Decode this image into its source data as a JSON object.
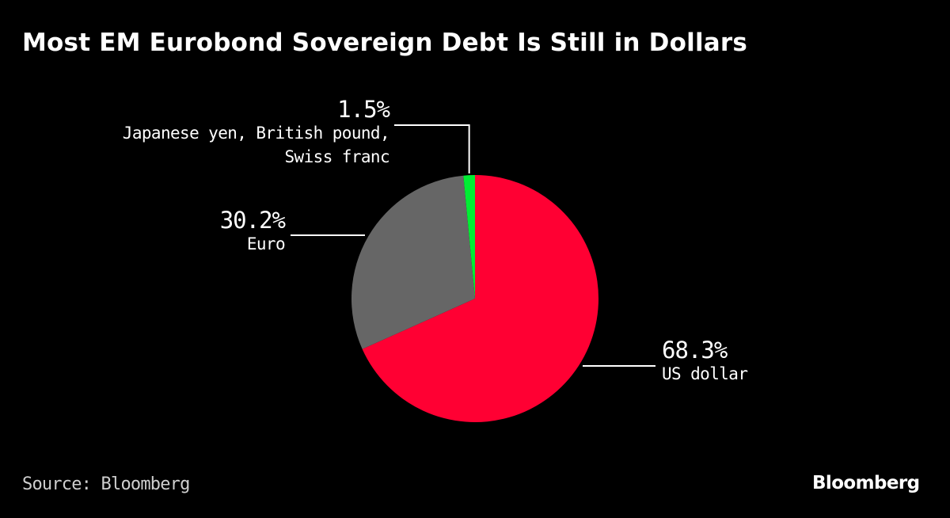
{
  "title": "Most EM Eurobond Sovereign Debt Is Still in Dollars",
  "source": "Source: Bloomberg",
  "brand": "Bloomberg",
  "chart_data": {
    "type": "pie",
    "title": "Most EM Eurobond Sovereign Debt Is Still in Dollars",
    "slices": [
      {
        "name": "US dollar",
        "value": 68.3,
        "value_label": "68.3%",
        "label_lines": [
          "US dollar"
        ],
        "color": "#ff0033"
      },
      {
        "name": "Euro",
        "value": 30.2,
        "value_label": "30.2%",
        "label_lines": [
          "Euro"
        ],
        "color": "#666666"
      },
      {
        "name": "Japanese yen, British pound, Swiss franc",
        "value": 1.5,
        "value_label": "1.5%",
        "label_lines": [
          "Japanese yen, British pound,",
          "Swiss franc"
        ],
        "color": "#00ee33"
      }
    ],
    "start_angle": "12 o'clock",
    "direction": "clockwise"
  }
}
